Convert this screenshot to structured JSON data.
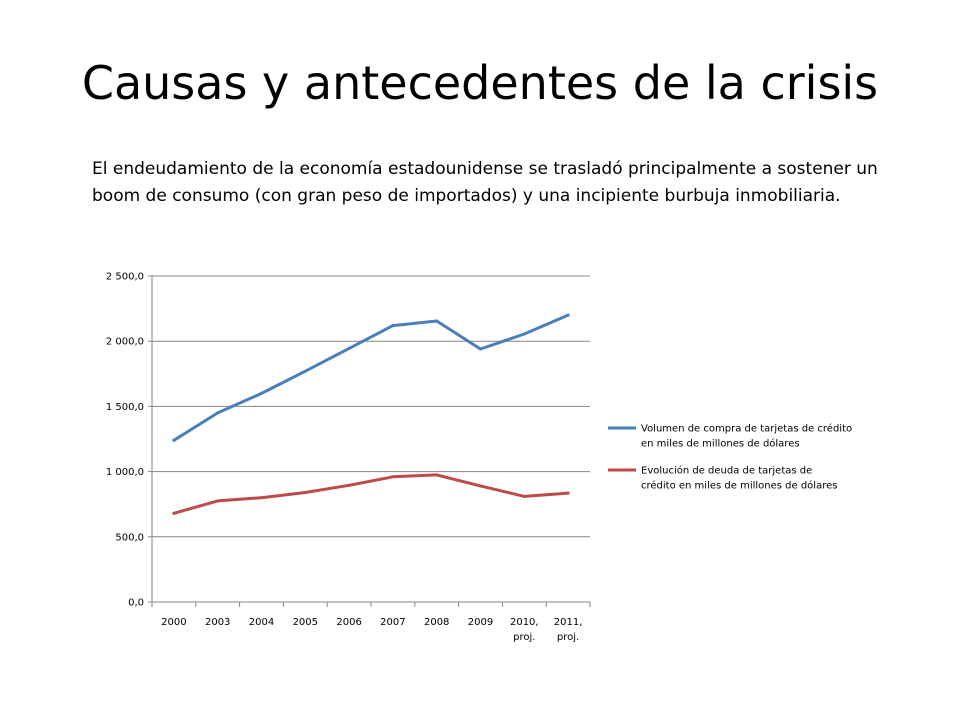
{
  "slide": {
    "title": "Causas y antecedentes de la crisis",
    "body": "El endeudamiento de la economía estadounidense se trasladó principalmente a sostener un boom de consumo (con gran peso de importados) y una incipiente burbuja inmobiliaria."
  },
  "chart_data": {
    "type": "line",
    "title": "",
    "xlabel": "",
    "ylabel": "",
    "categories": [
      "2000",
      "2003",
      "2004",
      "2005",
      "2006",
      "2007",
      "2008",
      "2009",
      "2010, proj.",
      "2011, proj."
    ],
    "ylim": [
      0,
      2500
    ],
    "yticks": [
      0,
      500,
      1000,
      1500,
      2000,
      2500
    ],
    "ytick_labels": [
      "0,0",
      "500,0",
      "1 000,0",
      "1 500,0",
      "2 000,0",
      "2 500,0"
    ],
    "grid": true,
    "legend_position": "right",
    "series": [
      {
        "name": "Volumen de compra de tarjetas de crédito en miles de millones de dólares",
        "color": "#4A7EBB",
        "values": [
          1240,
          1450,
          1600,
          1770,
          1945,
          2120,
          2155,
          1940,
          2055,
          2200
        ]
      },
      {
        "name": "Evolución de deuda de tarjetas de crédito en miles de millones de dólares",
        "color": "#BE4B48",
        "values": [
          680,
          775,
          800,
          840,
          895,
          960,
          975,
          890,
          810,
          835
        ]
      }
    ]
  }
}
